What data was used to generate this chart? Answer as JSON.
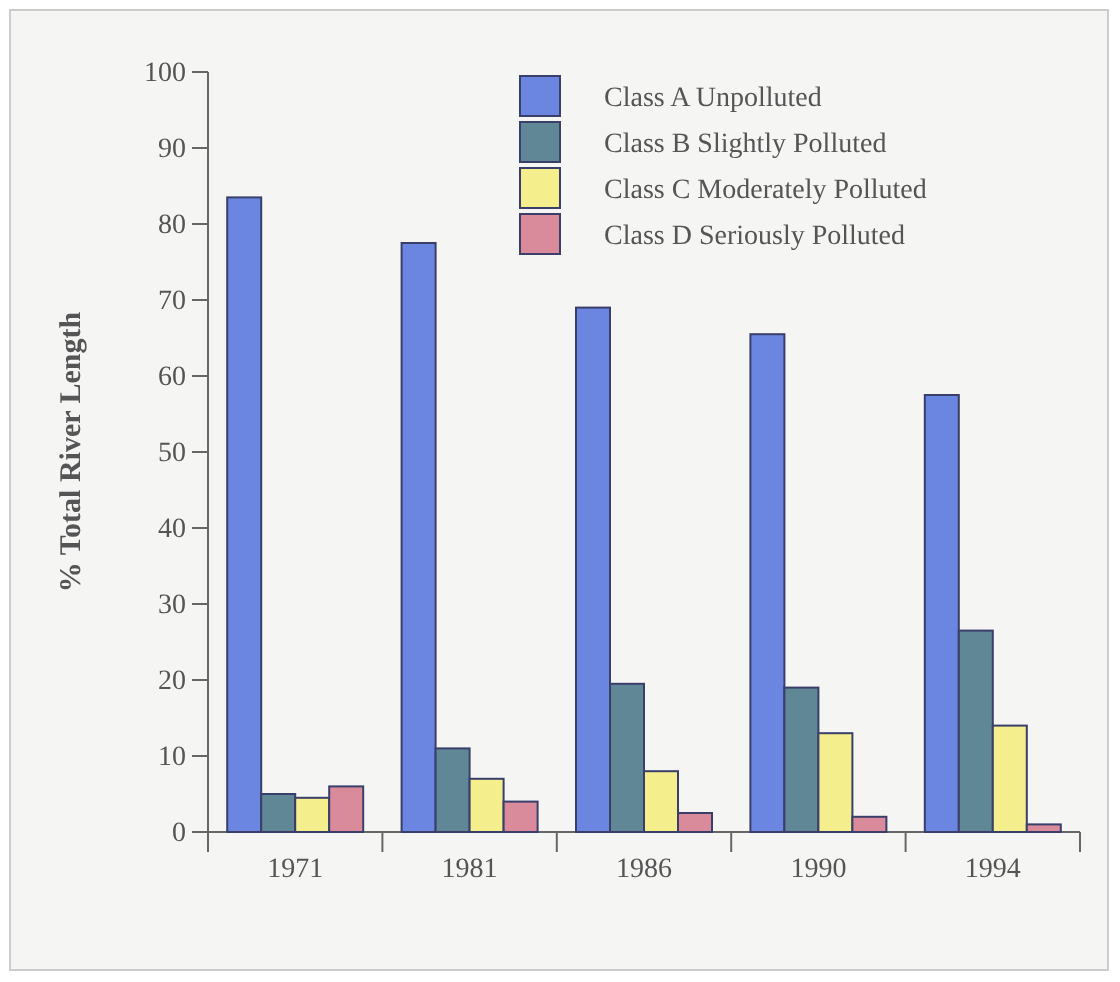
{
  "chart_data": {
    "type": "bar",
    "ylabel": "% Total River Length",
    "categories": [
      "1971",
      "1981",
      "1986",
      "1990",
      "1994"
    ],
    "series": [
      {
        "name": "Class A Unpolluted",
        "color": "#6b86e0",
        "values": [
          83.5,
          77.5,
          69,
          65.5,
          57.5
        ]
      },
      {
        "name": "Class B Slightly Polluted",
        "color": "#5f8796",
        "values": [
          5,
          11,
          19.5,
          19,
          26.5
        ]
      },
      {
        "name": "Class C Moderately Polluted",
        "color": "#f4ee8c",
        "values": [
          4.5,
          7,
          8,
          13,
          14
        ]
      },
      {
        "name": "Class D Seriously Polluted",
        "color": "#d98b9c",
        "values": [
          6,
          4,
          2.5,
          2,
          1
        ]
      }
    ],
    "ylim": [
      0,
      100
    ],
    "yticks": [
      0,
      10,
      20,
      30,
      40,
      50,
      60,
      70,
      80,
      90,
      100
    ],
    "legend": "top right",
    "grid": false
  }
}
